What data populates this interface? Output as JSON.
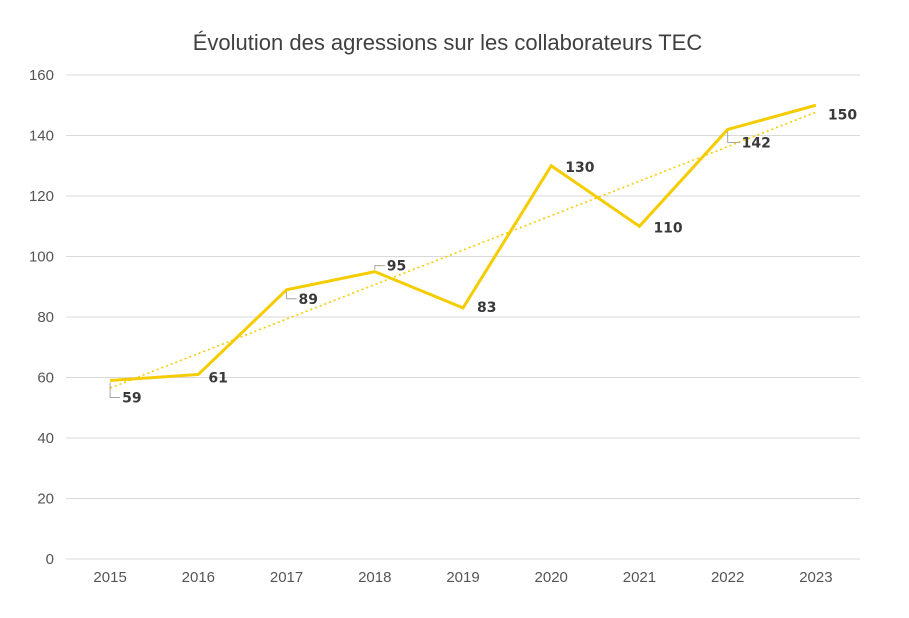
{
  "chart_data": {
    "type": "line",
    "title": "Évolution des agressions sur les collaborateurs TEC",
    "xlabel": "",
    "ylabel": "",
    "categories": [
      "2015",
      "2016",
      "2017",
      "2018",
      "2019",
      "2020",
      "2021",
      "2022",
      "2023"
    ],
    "series": [
      {
        "values": [
          59,
          61,
          89,
          95,
          83,
          130,
          110,
          142,
          150
        ]
      }
    ],
    "trendline": {
      "type": "linear",
      "style": "dotted"
    },
    "data_labels": [
      "59",
      "61",
      "89",
      "95",
      "83",
      "130",
      "110",
      "142",
      "150"
    ],
    "ylim": [
      0,
      160
    ],
    "yticks": [
      0,
      20,
      40,
      60,
      80,
      100,
      120,
      140,
      160
    ],
    "grid": true,
    "legend": "none",
    "colors": {
      "line": "#f5cc00",
      "trend": "#f5cc00",
      "grid": "#d9d9d9",
      "text": "#404040"
    }
  }
}
